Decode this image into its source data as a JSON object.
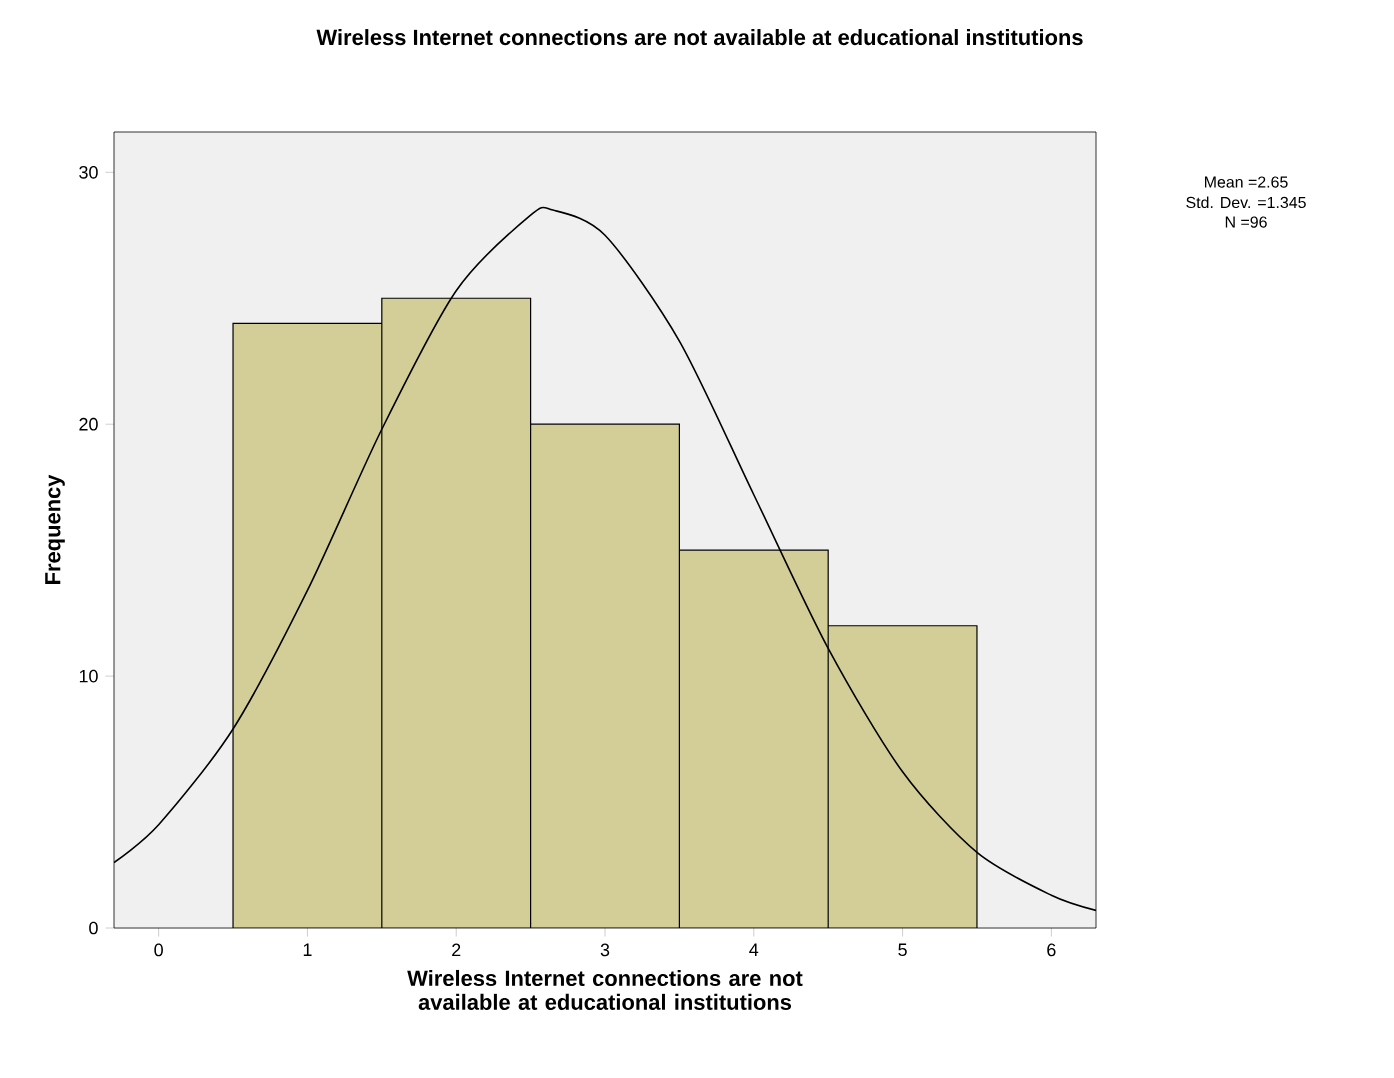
{
  "chart_data": {
    "type": "histogram",
    "title": "Wireless Internet connections are not available at educational institutions",
    "xlabel": "Wireless Internet connections are not available at educational institutions",
    "ylabel": "Frequency",
    "xlim": [
      -0.3,
      6.3
    ],
    "ylim": [
      0,
      31.6
    ],
    "xticks": [
      0,
      1,
      2,
      3,
      4,
      5,
      6
    ],
    "yticks": [
      0,
      10,
      20,
      30
    ],
    "series": [
      {
        "color": "#d3ce97",
        "bins": [
          0.5,
          1.5,
          2.5,
          3.5,
          4.5,
          5.5
        ],
        "values": [
          24,
          25,
          20,
          15,
          12
        ]
      },
      {
        "type": "line",
        "color": "#000000",
        "x": [
          -0.3,
          0,
          0.5,
          1,
          1.5,
          2,
          2.5,
          2.65,
          3,
          3.5,
          4,
          4.5,
          5,
          5.5,
          6,
          6.3
        ],
        "values": [
          2.6,
          4.1,
          7.9,
          13.4,
          19.8,
          25.3,
          28.3,
          28.5,
          27.5,
          23.3,
          17.2,
          11.1,
          6.2,
          3.0,
          1.3,
          0.7
        ]
      }
    ],
    "annotations": [
      "Mean =2.65",
      "Std. Dev. =1.345",
      "N =96"
    ]
  }
}
